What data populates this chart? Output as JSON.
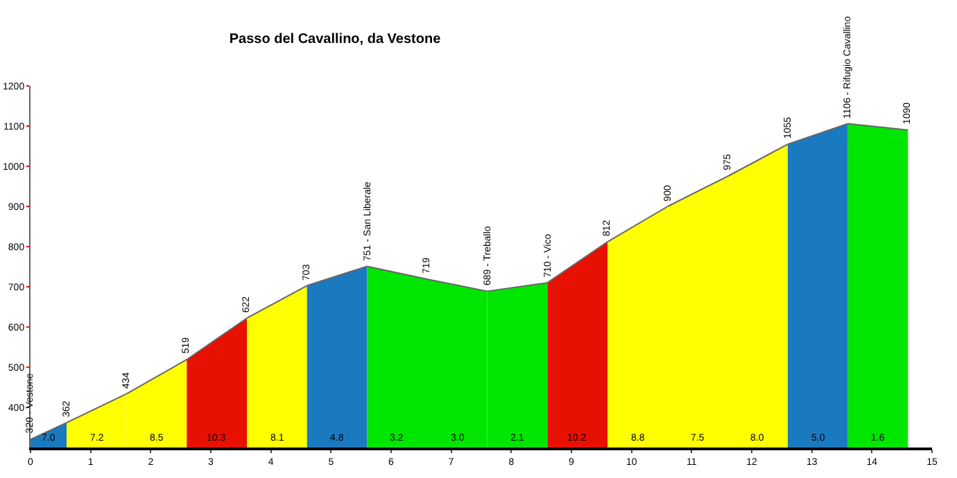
{
  "chart_data": {
    "type": "area",
    "title": "Passo del Cavallino, da Vestone",
    "xlim": [
      0,
      15
    ],
    "xticks": [
      0,
      1,
      2,
      3,
      4,
      5,
      6,
      7,
      8,
      9,
      10,
      11,
      12,
      13,
      14,
      15
    ],
    "ylim": [
      300,
      1200
    ],
    "yticks": [
      400,
      500,
      600,
      700,
      800,
      900,
      1000,
      1100,
      1200
    ],
    "series": [
      {
        "color": "#1a7abf",
        "x": [
          0,
          0.6
        ],
        "values": [
          320,
          362
        ],
        "value_labels": [
          "320 - Vestone",
          null
        ]
      },
      {
        "color": "#ffff00",
        "x": [
          0.6,
          1.6
        ],
        "values": [
          362,
          434
        ],
        "value_labels": [
          "362",
          null
        ]
      },
      {
        "color": "#ffff00",
        "x": [
          1.6,
          2.6
        ],
        "values": [
          434,
          519
        ],
        "value_labels": [
          "434",
          null
        ]
      },
      {
        "color": "#e81000",
        "x": [
          2.6,
          3.6
        ],
        "values": [
          519,
          622
        ],
        "value_labels": [
          "519",
          null
        ]
      },
      {
        "color": "#ffff00",
        "x": [
          3.6,
          4.6
        ],
        "values": [
          622,
          703
        ],
        "value_labels": [
          "622",
          null
        ]
      },
      {
        "color": "#1a7abf",
        "x": [
          4.6,
          5.6
        ],
        "values": [
          703,
          751
        ],
        "value_labels": [
          "703",
          null
        ]
      },
      {
        "color": "#00e600",
        "x": [
          5.6,
          6.6
        ],
        "values": [
          751,
          719
        ],
        "value_labels": [
          "751 - San Liberale",
          null
        ]
      },
      {
        "color": "#00e600",
        "x": [
          6.6,
          7.6
        ],
        "values": [
          719,
          689
        ],
        "value_labels": [
          "719",
          null
        ]
      },
      {
        "color": "#00e600",
        "x": [
          7.6,
          8.6
        ],
        "values": [
          689,
          710
        ],
        "value_labels": [
          "689 - Treballo",
          null
        ]
      },
      {
        "color": "#e81000",
        "x": [
          8.6,
          9.6
        ],
        "values": [
          710,
          812
        ],
        "value_labels": [
          "710 - Vico",
          null
        ]
      },
      {
        "color": "#ffff00",
        "x": [
          9.6,
          10.6
        ],
        "values": [
          812,
          900
        ],
        "value_labels": [
          "812",
          null
        ]
      },
      {
        "color": "#ffff00",
        "x": [
          10.6,
          11.6
        ],
        "values": [
          900,
          975
        ],
        "value_labels": [
          "900",
          null
        ]
      },
      {
        "color": "#ffff00",
        "x": [
          11.6,
          12.6
        ],
        "values": [
          975,
          1055
        ],
        "value_labels": [
          "975",
          null
        ]
      },
      {
        "color": "#1a7abf",
        "x": [
          12.6,
          13.6
        ],
        "values": [
          1055,
          1106
        ],
        "value_labels": [
          "1055",
          null
        ]
      },
      {
        "color": "#00e600",
        "x": [
          13.6,
          14.6
        ],
        "values": [
          1106,
          1090
        ],
        "value_labels": [
          "1106 - Rifugio Cavallino",
          "1090"
        ]
      }
    ],
    "annotations": [
      "7.0",
      "7.2",
      "8.5",
      "10.3",
      "8.1",
      "4.8",
      "3.2",
      "3.0",
      "2.1",
      "10.2",
      "8.8",
      "7.5",
      "8.0",
      "5.0",
      "1.6"
    ]
  }
}
